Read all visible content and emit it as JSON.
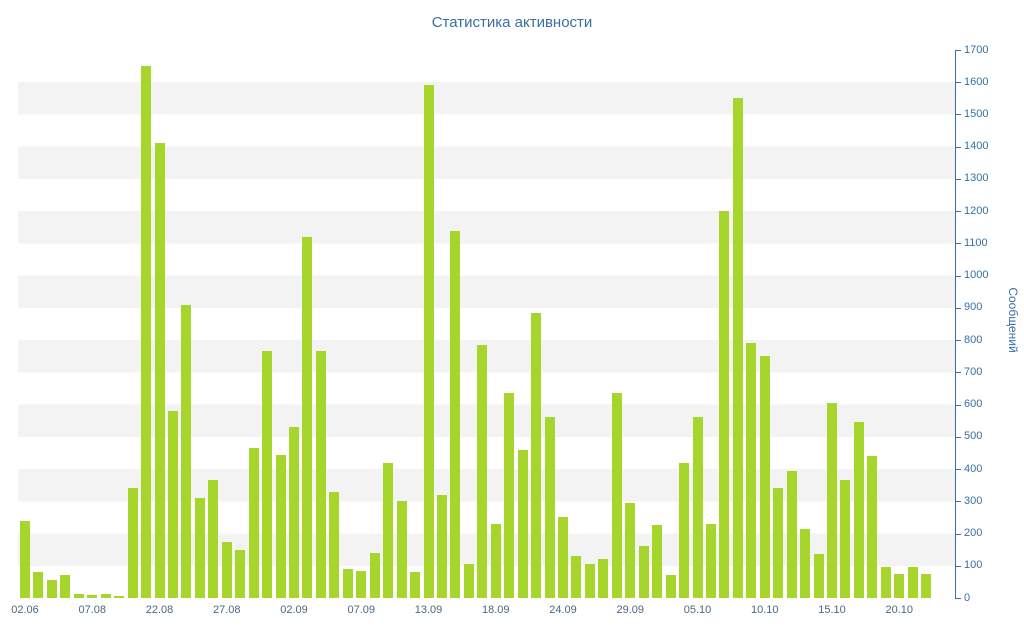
{
  "chart_data": {
    "type": "bar",
    "title": "Статистика активности",
    "ylabel": "Сообщений",
    "xlabel": "",
    "ylim": [
      0,
      1700
    ],
    "y_tick_step": 100,
    "y_ticks": [
      0,
      100,
      200,
      300,
      400,
      500,
      600,
      700,
      800,
      900,
      1000,
      1100,
      1200,
      1300,
      1400,
      1500,
      1600,
      1700
    ],
    "x_tick_labels": [
      "02.06",
      "07.08",
      "22.08",
      "27.08",
      "02.09",
      "07.09",
      "13.09",
      "18.09",
      "24.09",
      "29.09",
      "05.10",
      "10.10",
      "15.10",
      "20.10"
    ],
    "x_tick_indices": [
      0,
      5,
      10,
      15,
      20,
      25,
      30,
      35,
      40,
      45,
      50,
      55,
      60,
      65
    ],
    "values": [
      240,
      80,
      55,
      70,
      12,
      10,
      12,
      6,
      340,
      1650,
      1410,
      580,
      910,
      310,
      365,
      175,
      150,
      465,
      765,
      445,
      530,
      1120,
      765,
      330,
      90,
      85,
      140,
      420,
      300,
      80,
      1590,
      320,
      1140,
      105,
      785,
      230,
      635,
      460,
      885,
      560,
      250,
      130,
      105,
      120,
      635,
      295,
      160,
      225,
      70,
      420,
      560,
      230,
      1200,
      1550,
      790,
      750,
      340,
      395,
      215,
      135,
      605,
      365,
      545,
      440,
      95,
      75,
      95,
      75
    ],
    "legend": "none",
    "grid": "alternating-horizontal-bands",
    "colors": {
      "bar": "#a6d52b",
      "axis": "#3a6ea5",
      "tick_label": "#3a6ea5",
      "x_label": "#4a6785",
      "title": "#3a6ea5",
      "band": "#f3f3f3",
      "background": "#ffffff"
    }
  }
}
